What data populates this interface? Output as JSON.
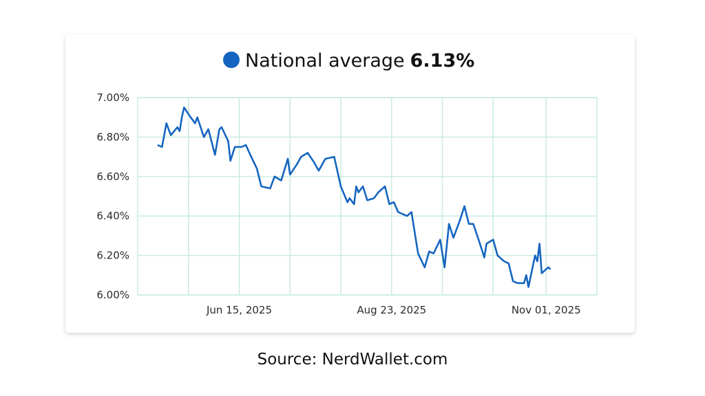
{
  "chart_data": {
    "type": "line",
    "current_value_label": "6.13%",
    "x": [
      "2025-05-09",
      "2025-05-11",
      "2025-05-13",
      "2025-05-15",
      "2025-05-18",
      "2025-05-19",
      "2025-05-20",
      "2025-05-21",
      "2025-05-24",
      "2025-05-26",
      "2025-05-27",
      "2025-05-30",
      "2025-06-01",
      "2025-06-04",
      "2025-06-06",
      "2025-06-07",
      "2025-06-10",
      "2025-06-11",
      "2025-06-13",
      "2025-06-16",
      "2025-06-18",
      "2025-06-20",
      "2025-06-23",
      "2025-06-25",
      "2025-06-29",
      "2025-07-01",
      "2025-07-04",
      "2025-07-07",
      "2025-07-08",
      "2025-07-11",
      "2025-07-13",
      "2025-07-16",
      "2025-07-19",
      "2025-07-21",
      "2025-07-24",
      "2025-07-28",
      "2025-07-29",
      "2025-07-31",
      "2025-08-03",
      "2025-08-04",
      "2025-08-06",
      "2025-08-07",
      "2025-08-08",
      "2025-08-10",
      "2025-08-12",
      "2025-08-15",
      "2025-08-17",
      "2025-08-20",
      "2025-08-22",
      "2025-08-24",
      "2025-08-26",
      "2025-08-30",
      "2025-09-01",
      "2025-09-04",
      "2025-09-07",
      "2025-09-09",
      "2025-09-11",
      "2025-09-14",
      "2025-09-16",
      "2025-09-18",
      "2025-09-20",
      "2025-09-23",
      "2025-09-25",
      "2025-09-27",
      "2025-09-29",
      "2025-10-02",
      "2025-10-04",
      "2025-10-05",
      "2025-10-08",
      "2025-10-10",
      "2025-10-13",
      "2025-10-15",
      "2025-10-17",
      "2025-10-19",
      "2025-10-22",
      "2025-10-23",
      "2025-10-24",
      "2025-10-27",
      "2025-10-28",
      "2025-10-29",
      "2025-10-30",
      "2025-11-02",
      "2025-11-03"
    ],
    "series": [
      {
        "name": "National average",
        "color": "#1565c0",
        "values": [
          6.76,
          6.75,
          6.87,
          6.81,
          6.85,
          6.83,
          6.9,
          6.95,
          6.9,
          6.87,
          6.9,
          6.8,
          6.84,
          6.71,
          6.84,
          6.85,
          6.78,
          6.68,
          6.75,
          6.75,
          6.76,
          6.71,
          6.64,
          6.55,
          6.54,
          6.6,
          6.58,
          6.69,
          6.61,
          6.66,
          6.7,
          6.72,
          6.67,
          6.63,
          6.69,
          6.7,
          6.65,
          6.55,
          6.47,
          6.49,
          6.46,
          6.55,
          6.52,
          6.55,
          6.48,
          6.49,
          6.52,
          6.55,
          6.46,
          6.47,
          6.42,
          6.4,
          6.42,
          6.21,
          6.14,
          6.22,
          6.21,
          6.28,
          6.14,
          6.36,
          6.29,
          6.38,
          6.45,
          6.36,
          6.36,
          6.26,
          6.19,
          6.26,
          6.28,
          6.2,
          6.17,
          6.16,
          6.07,
          6.06,
          6.06,
          6.1,
          6.04,
          6.2,
          6.17,
          6.26,
          6.11,
          6.14,
          6.13
        ]
      }
    ],
    "xlim": [
      "2025-04-30",
      "2025-11-24"
    ],
    "xticks": [
      {
        "value": "2025-06-15",
        "label": "Jun 15, 2025"
      },
      {
        "value": "2025-08-23",
        "label": "Aug 23, 2025"
      },
      {
        "value": "2025-11-01",
        "label": "Nov 01, 2025"
      }
    ],
    "xgrid": [
      "2025-05-23",
      "2025-07-08",
      "2025-07-31",
      "2025-09-15",
      "2025-10-08"
    ],
    "ylim": [
      6.0,
      7.0
    ],
    "yticks": [
      {
        "value": 6.0,
        "label": "6.00%"
      },
      {
        "value": 6.2,
        "label": "6.20%"
      },
      {
        "value": 6.4,
        "label": "6.40%"
      },
      {
        "value": 6.6,
        "label": "6.60%"
      },
      {
        "value": 6.8,
        "label": "6.80%"
      },
      {
        "value": 7.0,
        "label": "7.00%"
      }
    ],
    "grid": true
  },
  "source": "Source: NerdWallet.com"
}
